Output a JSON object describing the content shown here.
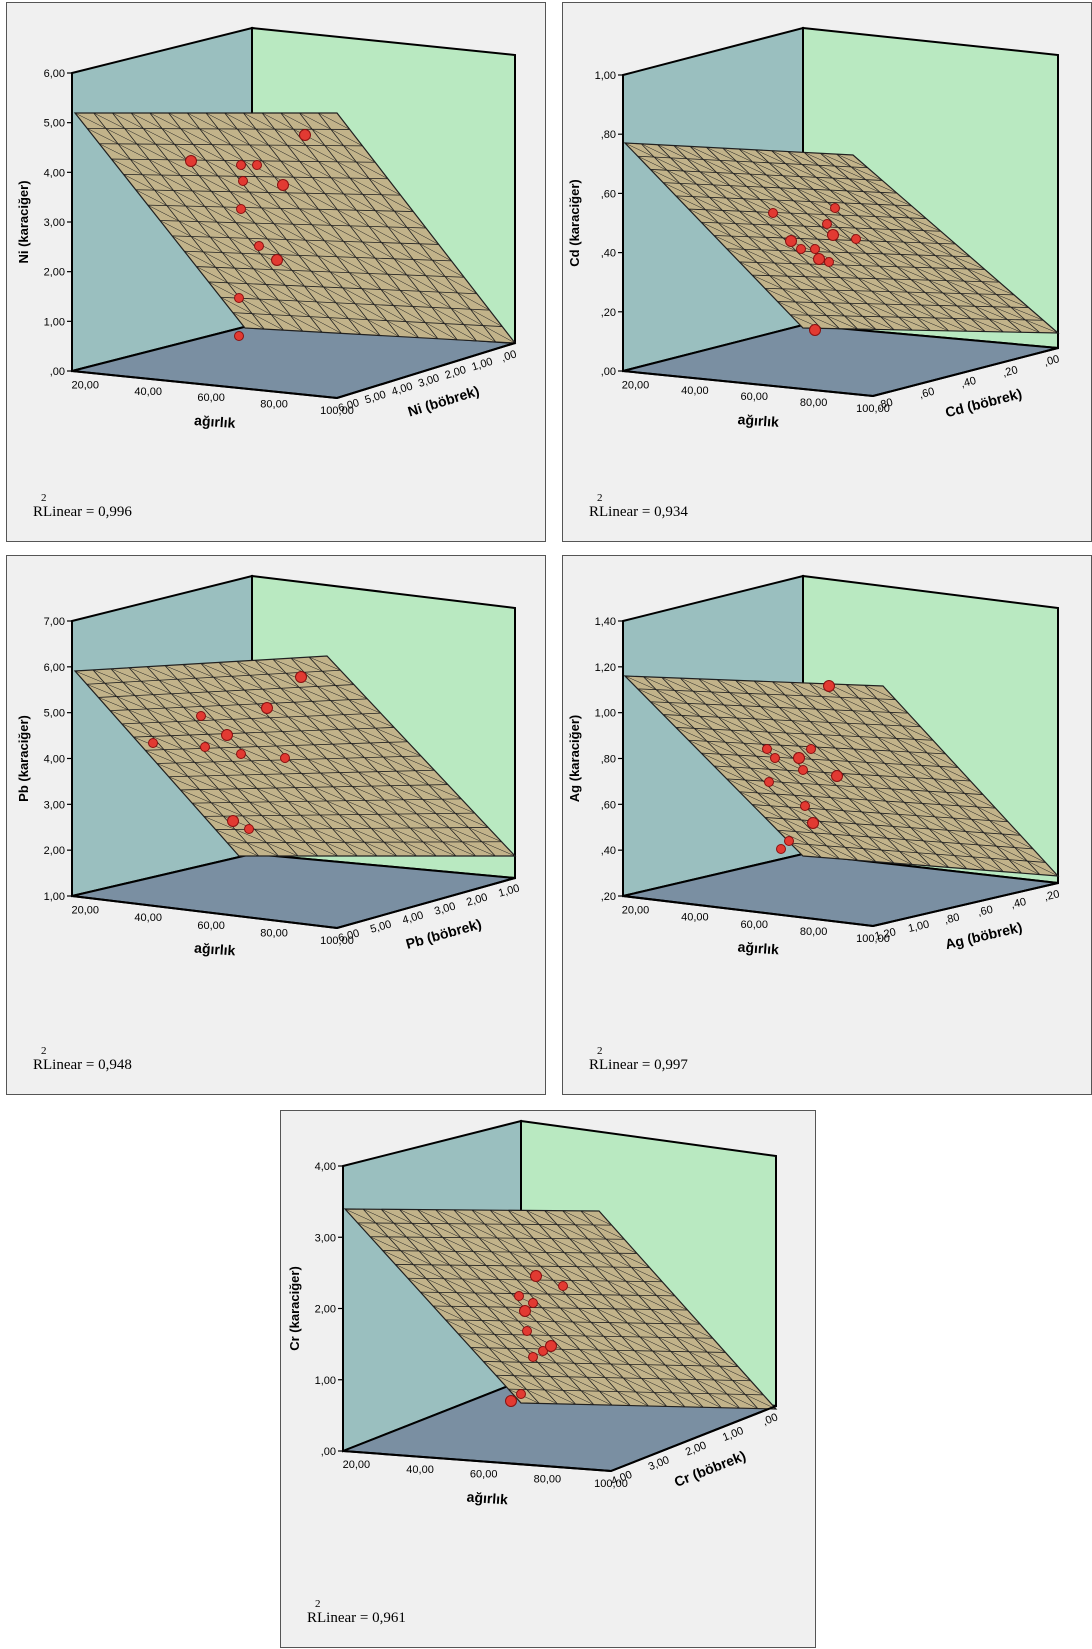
{
  "colors": {
    "panel_bg": "#f0f0f0",
    "left_wall": "#9abfbf",
    "back_wall": "#b9e9c1",
    "floor": "#7a8fa2",
    "plane_fill": "#c2b38a",
    "plane_line": "#202020",
    "point_fill": "#e23a32",
    "point_stroke": "#8a1010"
  },
  "charts": [
    {
      "type": "scatter3d",
      "ylabel": "Ni (karaciğer)",
      "xlabel": "ağırlık",
      "zlabel": "Ni (böbrek)",
      "y_ticks": [
        ",00",
        "1,00",
        "2,00",
        "3,00",
        "4,00",
        "5,00",
        "6,00"
      ],
      "x_ticks": [
        "20,00",
        "40,00",
        "60,00",
        "80,00",
        "100,00"
      ],
      "z_ticks": [
        "6,00",
        "5,00",
        "4,00",
        "3,00",
        "2,00",
        "1,00",
        ",00"
      ],
      "fit": "R2 Linear",
      "r2_prefix": "R",
      "r2_sup": "2",
      "r2_label": "Linear = ",
      "r2_value": "0,996"
    },
    {
      "type": "scatter3d",
      "ylabel": "Cd (karaciğer)",
      "xlabel": "ağırlık",
      "zlabel": "Cd (böbrek)",
      "y_ticks": [
        ",00",
        ",20",
        ",40",
        ",60",
        ",80",
        "1,00"
      ],
      "x_ticks": [
        "20,00",
        "40,00",
        "60,00",
        "80,00",
        "100,00"
      ],
      "z_ticks": [
        ",80",
        ",60",
        ",40",
        ",20",
        ",00"
      ],
      "fit": "R2 Linear",
      "r2_prefix": "R",
      "r2_sup": "2",
      "r2_label": "Linear = ",
      "r2_value": "0,934"
    },
    {
      "type": "scatter3d",
      "ylabel": "Pb (karaciğer)",
      "xlabel": "ağırlık",
      "zlabel": "Pb (böbrek)",
      "y_ticks": [
        "1,00",
        "2,00",
        "3,00",
        "4,00",
        "5,00",
        "6,00",
        "7,00"
      ],
      "x_ticks": [
        "20,00",
        "40,00",
        "60,00",
        "80,00",
        "100,00"
      ],
      "z_ticks": [
        "6,00",
        "5,00",
        "4,00",
        "3,00",
        "2,00",
        "1,00"
      ],
      "fit": "R2 Linear",
      "r2_prefix": "R",
      "r2_sup": "2",
      "r2_label": "Linear = ",
      "r2_value": "0,948"
    },
    {
      "type": "scatter3d",
      "ylabel": "Ag (karaciğer)",
      "xlabel": "ağırlık",
      "zlabel": "Ag (böbrek)",
      "y_ticks": [
        ",20",
        ",40",
        ",60",
        ",80",
        "1,00",
        "1,20",
        "1,40"
      ],
      "x_ticks": [
        "20,00",
        "40,00",
        "60,00",
        "80,00",
        "100,00"
      ],
      "z_ticks": [
        "1,20",
        "1,00",
        ",80",
        ",60",
        ",40",
        ",20"
      ],
      "fit": "R2 Linear",
      "r2_prefix": "R",
      "r2_sup": "2",
      "r2_label": "Linear = ",
      "r2_value": "0,997"
    },
    {
      "type": "scatter3d",
      "ylabel": "Cr (karaciğer)",
      "xlabel": "ağırlık",
      "zlabel": "Cr (böbrek)",
      "y_ticks": [
        ",00",
        "1,00",
        "2,00",
        "3,00",
        "4,00"
      ],
      "x_ticks": [
        "20,00",
        "40,00",
        "60,00",
        "80,00",
        "100,00"
      ],
      "z_ticks": [
        "4,00",
        "3,00",
        "2,00",
        "1,00",
        ",00"
      ],
      "fit": "R2 Linear",
      "r2_prefix": "R",
      "r2_sup": "2",
      "r2_label": "Linear = ",
      "r2_value": "0,961"
    }
  ]
}
